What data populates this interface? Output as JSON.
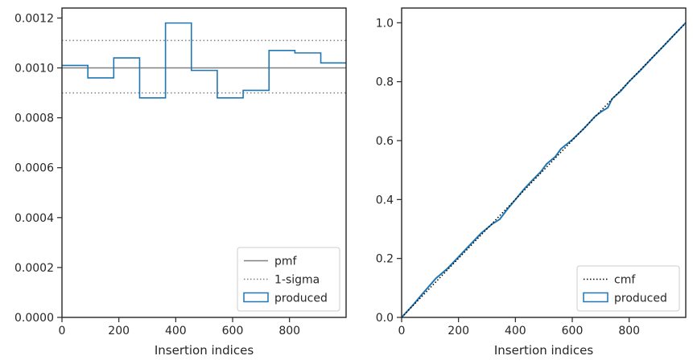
{
  "chart_data": [
    {
      "type": "histogram-step",
      "xlabel": "Insertion indices",
      "ylabel": "",
      "xlim": [
        0,
        999
      ],
      "ylim": [
        0,
        0.00124
      ],
      "xticks": [
        0,
        200,
        400,
        600,
        800
      ],
      "xtick_labels": [
        "0",
        "200",
        "400",
        "600",
        "800"
      ],
      "yticks": [
        0,
        0.0002,
        0.0004,
        0.0006,
        0.0008,
        0.001,
        0.0012
      ],
      "ytick_labels": [
        "0.0000",
        "0.0002",
        "0.0004",
        "0.0006",
        "0.0008",
        "0.0010",
        "0.0012"
      ],
      "bin_edges": [
        0,
        91,
        182,
        273,
        364,
        455,
        546,
        637,
        728,
        819,
        910,
        999
      ],
      "produced": [
        0.00101,
        0.00096,
        0.00104,
        0.00088,
        0.00118,
        0.00099,
        0.00088,
        0.00091,
        0.00107,
        0.00106,
        0.00102
      ],
      "pmf": 0.001,
      "sigma_upper": 0.00111,
      "sigma_lower": 0.0009,
      "legend": {
        "position": "lower right",
        "entries": [
          {
            "label": "pmf",
            "style": "solid",
            "color": "#808080"
          },
          {
            "label": "1-sigma",
            "style": "dotted",
            "color": "#808080"
          },
          {
            "label": "produced",
            "style": "step",
            "color": "#1f77b4"
          }
        ]
      }
    },
    {
      "type": "line",
      "xlabel": "Insertion indices",
      "ylabel": "",
      "xlim": [
        0,
        999
      ],
      "ylim": [
        0,
        1.05
      ],
      "xticks": [
        0,
        200,
        400,
        600,
        800
      ],
      "xtick_labels": [
        "0",
        "200",
        "400",
        "600",
        "800"
      ],
      "yticks": [
        0,
        0.2,
        0.4,
        0.6,
        0.8,
        1.0
      ],
      "ytick_labels": [
        "0.0",
        "0.2",
        "0.4",
        "0.6",
        "0.8",
        "1.0"
      ],
      "series": [
        {
          "name": "cmf",
          "style": "dotted",
          "color": "#000000",
          "x": [
            0,
            999
          ],
          "y": [
            0,
            1.0
          ]
        },
        {
          "name": "produced",
          "style": "step",
          "color": "#1f77b4",
          "x": [
            0,
            40,
            75,
            120,
            160,
            200,
            240,
            280,
            320,
            345,
            370,
            400,
            430,
            460,
            490,
            510,
            540,
            560,
            600,
            640,
            680,
            700,
            725,
            740,
            770,
            800,
            840,
            880,
            920,
            960,
            999
          ],
          "y": [
            0,
            0.042,
            0.082,
            0.132,
            0.165,
            0.205,
            0.246,
            0.286,
            0.318,
            0.333,
            0.365,
            0.4,
            0.435,
            0.466,
            0.495,
            0.521,
            0.545,
            0.572,
            0.603,
            0.64,
            0.682,
            0.697,
            0.712,
            0.742,
            0.768,
            0.801,
            0.839,
            0.88,
            0.92,
            0.961,
            1.0
          ]
        }
      ],
      "legend": {
        "position": "lower right",
        "entries": [
          {
            "label": "cmf",
            "style": "dotted",
            "color": "#000000"
          },
          {
            "label": "produced",
            "style": "step",
            "color": "#1f77b4"
          }
        ]
      }
    }
  ]
}
